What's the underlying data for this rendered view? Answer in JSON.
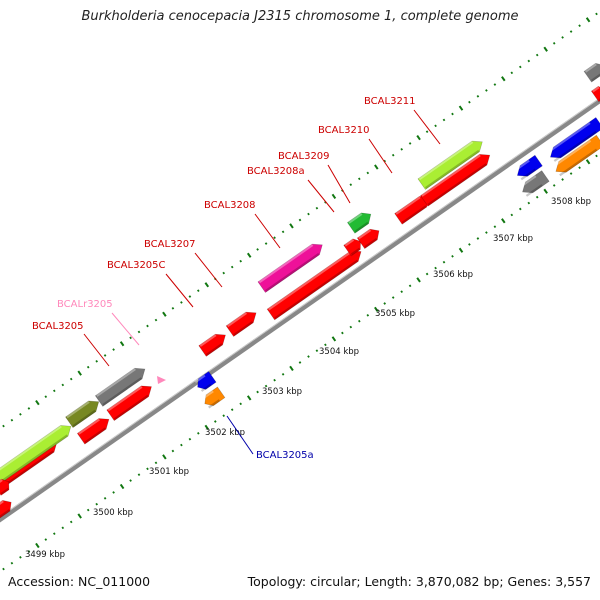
{
  "title": "Burkholderia cenocepacia J2315 chromosome 1, complete genome",
  "footer": {
    "accession": "Accession: NC_011000",
    "topology": "Topology: circular; Length: 3,870,082 bp; Genes: 3,557"
  },
  "ticks": [
    "3499 kbp",
    "3500 kbp",
    "3501 kbp",
    "3502 kbp",
    "3503 kbp",
    "3504 kbp",
    "3505 kbp",
    "3506 kbp",
    "3507 kbp",
    "3508 kbp"
  ],
  "gene_labels": [
    {
      "id": "BCAL3205",
      "color": "#cc0000"
    },
    {
      "id": "BCALr3205",
      "color": "#ff88bb"
    },
    {
      "id": "BCAL3205C",
      "color": "#cc0000"
    },
    {
      "id": "BCAL3207",
      "color": "#cc0000"
    },
    {
      "id": "BCAL3208",
      "color": "#cc0000"
    },
    {
      "id": "BCAL3208a",
      "color": "#cc0000"
    },
    {
      "id": "BCAL3209",
      "color": "#cc0000"
    },
    {
      "id": "BCAL3210",
      "color": "#cc0000"
    },
    {
      "id": "BCAL3211",
      "color": "#cc0000"
    },
    {
      "id": "BCAL3205a",
      "color": "#0000aa"
    }
  ],
  "colors": {
    "red": "#ff0000",
    "lime": "#aaee33",
    "olive": "#778822",
    "gray": "#777777",
    "magenta": "#ee1199",
    "green": "#22bb33",
    "blue": "#0000ee",
    "orange": "#ff8800",
    "pink": "#ff88bb",
    "backbone": "#888888",
    "dots": "#117711"
  }
}
